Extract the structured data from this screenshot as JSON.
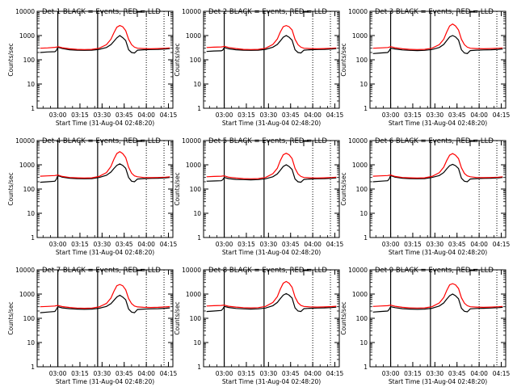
{
  "figure": {
    "background": "#ffffff"
  },
  "common": {
    "ylabel": "Counts/sec",
    "xlabel": "Start Time (31-Aug-04 02:48:20)",
    "xticks": [
      "03:00",
      "03:15",
      "03:30",
      "03:45",
      "04:00",
      "04:15"
    ],
    "yticks": [
      "1",
      "10",
      "100",
      "1000",
      "10000"
    ],
    "colors": {
      "events": "#000000",
      "lld": "#ff0000",
      "axes": "#000000"
    }
  },
  "chart_data": [
    {
      "type": "line",
      "title": "Det 1  BLACK = Events, RED = LLD",
      "xlabel": "Start Time (31-Aug-04 02:48:20)",
      "ylabel": "Counts/sec",
      "xlim": [
        -2,
        90
      ],
      "ylim": [
        1,
        10000
      ],
      "yscale": "log",
      "solid_vlines": [
        12,
        39
      ],
      "dotted_vlines": [
        72,
        84
      ],
      "x": [
        0,
        5,
        10,
        11,
        12,
        15,
        20,
        25,
        30,
        35,
        40,
        45,
        48,
        50,
        52,
        54,
        56,
        58,
        60,
        62,
        64,
        66,
        70,
        75,
        80,
        85,
        88
      ],
      "series": [
        {
          "name": "Events",
          "values": [
            200,
            210,
            215,
            240,
            330,
            290,
            260,
            250,
            245,
            250,
            270,
            320,
            420,
            580,
            800,
            1000,
            820,
            620,
            260,
            200,
            190,
            250,
            260,
            265,
            270,
            280,
            290
          ]
        },
        {
          "name": "LLD",
          "values": [
            300,
            310,
            325,
            330,
            350,
            315,
            285,
            270,
            265,
            270,
            300,
            420,
            700,
            1300,
            2200,
            2600,
            2300,
            1600,
            700,
            420,
            330,
            300,
            290,
            285,
            290,
            300,
            310
          ]
        }
      ]
    },
    {
      "type": "line",
      "title": "Det 2  BLACK = Events, RED = LLD",
      "xlabel": "Start Time (31-Aug-04 02:48:20)",
      "ylabel": "Counts/sec",
      "xlim": [
        -2,
        90
      ],
      "ylim": [
        1,
        10000
      ],
      "yscale": "log",
      "solid_vlines": [
        12,
        39
      ],
      "dotted_vlines": [
        72,
        84
      ],
      "x": [
        0,
        5,
        10,
        11,
        12,
        15,
        20,
        25,
        30,
        35,
        40,
        45,
        48,
        50,
        52,
        54,
        56,
        58,
        60,
        62,
        64,
        66,
        70,
        75,
        80,
        85,
        88
      ],
      "series": [
        {
          "name": "Events",
          "values": [
            220,
            230,
            235,
            250,
            320,
            285,
            260,
            250,
            245,
            250,
            270,
            330,
            430,
            600,
            850,
            1000,
            850,
            640,
            260,
            200,
            190,
            250,
            260,
            265,
            270,
            280,
            290
          ]
        },
        {
          "name": "LLD",
          "values": [
            320,
            330,
            340,
            345,
            360,
            320,
            290,
            270,
            265,
            270,
            300,
            430,
            720,
            1400,
            2300,
            2600,
            2300,
            1700,
            700,
            420,
            330,
            300,
            290,
            285,
            290,
            300,
            310
          ]
        }
      ]
    },
    {
      "type": "line",
      "title": "Det 3  BLACK = Events, RED = LLD",
      "xlabel": "Start Time (31-Aug-04 02:48:20)",
      "ylabel": "Counts/sec",
      "xlim": [
        -2,
        90
      ],
      "ylim": [
        1,
        10000
      ],
      "yscale": "log",
      "solid_vlines": [
        12,
        39
      ],
      "dotted_vlines": [
        72,
        84
      ],
      "x": [
        0,
        5,
        10,
        11,
        12,
        15,
        20,
        25,
        30,
        35,
        40,
        45,
        48,
        50,
        52,
        54,
        56,
        58,
        60,
        62,
        64,
        66,
        70,
        75,
        80,
        85,
        88
      ],
      "series": [
        {
          "name": "Events",
          "values": [
            180,
            190,
            200,
            230,
            300,
            280,
            255,
            245,
            240,
            245,
            265,
            320,
            430,
            620,
            880,
            1000,
            880,
            650,
            260,
            190,
            180,
            240,
            250,
            255,
            260,
            270,
            280
          ]
        },
        {
          "name": "LLD",
          "values": [
            300,
            310,
            320,
            330,
            350,
            315,
            285,
            270,
            265,
            270,
            300,
            420,
            700,
            1400,
            2500,
            3000,
            2500,
            1700,
            700,
            420,
            330,
            300,
            290,
            285,
            290,
            300,
            310
          ]
        }
      ]
    },
    {
      "type": "line",
      "title": "Det 4  BLACK = Events, RED = LLD",
      "xlabel": "Start Time (31-Aug-04 02:48:20)",
      "ylabel": "Counts/sec",
      "xlim": [
        -2,
        90
      ],
      "ylim": [
        1,
        10000
      ],
      "yscale": "log",
      "solid_vlines": [
        12,
        39
      ],
      "dotted_vlines": [
        72,
        84
      ],
      "x": [
        0,
        5,
        10,
        11,
        12,
        15,
        20,
        25,
        30,
        35,
        40,
        45,
        48,
        50,
        52,
        54,
        56,
        58,
        60,
        62,
        64,
        66,
        70,
        75,
        80,
        85,
        88
      ],
      "series": [
        {
          "name": "Events",
          "values": [
            190,
            200,
            210,
            250,
            360,
            310,
            280,
            270,
            265,
            270,
            300,
            370,
            500,
            700,
            950,
            1100,
            950,
            720,
            300,
            210,
            200,
            260,
            270,
            275,
            280,
            290,
            300
          ]
        },
        {
          "name": "LLD",
          "values": [
            340,
            350,
            360,
            370,
            380,
            330,
            300,
            290,
            285,
            290,
            330,
            480,
            850,
            1700,
            2900,
            3500,
            2900,
            2000,
            800,
            450,
            350,
            320,
            300,
            295,
            300,
            310,
            320
          ]
        }
      ]
    },
    {
      "type": "line",
      "title": "Det 5  BLACK = Events, RED = LLD",
      "xlabel": "Start Time (31-Aug-04 02:48:20)",
      "ylabel": "Counts/sec",
      "xlim": [
        -2,
        90
      ],
      "ylim": [
        1,
        10000
      ],
      "yscale": "log",
      "solid_vlines": [
        12,
        39
      ],
      "dotted_vlines": [
        72,
        84
      ],
      "x": [
        0,
        5,
        10,
        11,
        12,
        15,
        20,
        25,
        30,
        35,
        40,
        45,
        48,
        50,
        52,
        54,
        56,
        58,
        60,
        62,
        64,
        66,
        70,
        75,
        80,
        85,
        88
      ],
      "series": [
        {
          "name": "Events",
          "values": [
            210,
            215,
            220,
            240,
            300,
            270,
            250,
            245,
            240,
            245,
            265,
            320,
            420,
            600,
            850,
            1000,
            850,
            640,
            260,
            200,
            190,
            250,
            260,
            265,
            270,
            280,
            290
          ]
        },
        {
          "name": "LLD",
          "values": [
            320,
            330,
            340,
            345,
            350,
            310,
            285,
            270,
            265,
            270,
            300,
            430,
            720,
            1500,
            2600,
            3000,
            2600,
            1800,
            720,
            420,
            330,
            300,
            290,
            285,
            290,
            300,
            310
          ]
        }
      ]
    },
    {
      "type": "line",
      "title": "Det 6  BLACK = Events, RED = LLD",
      "xlabel": "Start Time (31-Aug-04 02:48:20)",
      "ylabel": "Counts/sec",
      "xlim": [
        -2,
        90
      ],
      "ylim": [
        1,
        10000
      ],
      "yscale": "log",
      "solid_vlines": [
        12,
        39
      ],
      "dotted_vlines": [
        72,
        84
      ],
      "x": [
        0,
        5,
        10,
        11,
        12,
        15,
        20,
        25,
        30,
        35,
        40,
        45,
        48,
        50,
        52,
        54,
        56,
        58,
        60,
        62,
        64,
        66,
        70,
        75,
        80,
        85,
        88
      ],
      "series": [
        {
          "name": "Events",
          "values": [
            200,
            210,
            220,
            260,
            360,
            310,
            280,
            270,
            265,
            270,
            300,
            360,
            480,
            680,
            920,
            1050,
            920,
            700,
            280,
            210,
            200,
            260,
            270,
            275,
            280,
            290,
            300
          ]
        },
        {
          "name": "LLD",
          "values": [
            340,
            350,
            360,
            370,
            380,
            330,
            300,
            290,
            285,
            290,
            330,
            470,
            800,
            1500,
            2500,
            2900,
            2500,
            1800,
            750,
            440,
            350,
            320,
            300,
            295,
            300,
            310,
            320
          ]
        }
      ]
    },
    {
      "type": "line",
      "title": "Det 7  BLACK = Events, RED = LLD",
      "xlabel": "Start Time (31-Aug-04 02:48:20)",
      "ylabel": "Counts/sec",
      "xlim": [
        -2,
        90
      ],
      "ylim": [
        1,
        10000
      ],
      "yscale": "log",
      "solid_vlines": [
        12,
        39
      ],
      "dotted_vlines": [
        72,
        84
      ],
      "x": [
        0,
        5,
        10,
        11,
        12,
        15,
        20,
        25,
        30,
        35,
        40,
        45,
        48,
        50,
        52,
        54,
        56,
        58,
        60,
        62,
        64,
        66,
        70,
        75,
        80,
        85,
        88
      ],
      "series": [
        {
          "name": "Events",
          "values": [
            170,
            180,
            190,
            230,
            300,
            270,
            250,
            240,
            235,
            240,
            260,
            310,
            400,
            550,
            750,
            900,
            750,
            580,
            240,
            180,
            170,
            230,
            240,
            245,
            250,
            260,
            270
          ]
        },
        {
          "name": "LLD",
          "values": [
            300,
            310,
            320,
            330,
            340,
            305,
            280,
            265,
            260,
            265,
            295,
            410,
            680,
            1300,
            2200,
            2500,
            2200,
            1500,
            650,
            400,
            320,
            295,
            285,
            280,
            285,
            295,
            305
          ]
        }
      ]
    },
    {
      "type": "line",
      "title": "Det 8  BLACK = Events, RED = LLD",
      "xlabel": "Start Time (31-Aug-04 02:48:20)",
      "ylabel": "Counts/sec",
      "xlim": [
        -2,
        90
      ],
      "ylim": [
        1,
        10000
      ],
      "yscale": "log",
      "solid_vlines": [
        12,
        39
      ],
      "dotted_vlines": [
        72,
        84
      ],
      "x": [
        0,
        5,
        10,
        11,
        12,
        15,
        20,
        25,
        30,
        35,
        40,
        45,
        48,
        50,
        52,
        54,
        56,
        58,
        60,
        62,
        64,
        66,
        70,
        75,
        80,
        85,
        88
      ],
      "series": [
        {
          "name": "Events",
          "values": [
            190,
            200,
            210,
            240,
            310,
            280,
            255,
            245,
            240,
            245,
            265,
            330,
            450,
            650,
            900,
            1050,
            900,
            680,
            270,
            200,
            190,
            250,
            260,
            265,
            270,
            280,
            290
          ]
        },
        {
          "name": "LLD",
          "values": [
            320,
            330,
            340,
            345,
            350,
            315,
            290,
            275,
            270,
            275,
            310,
            450,
            780,
            1600,
            2800,
            3300,
            2800,
            1900,
            750,
            440,
            340,
            310,
            295,
            290,
            295,
            305,
            315
          ]
        }
      ]
    },
    {
      "type": "line",
      "title": "Det 9  BLACK = Events, RED = LLD",
      "xlabel": "Start Time (31-Aug-04 02:48:20)",
      "ylabel": "Counts/sec",
      "xlim": [
        -2,
        90
      ],
      "ylim": [
        1,
        10000
      ],
      "yscale": "log",
      "solid_vlines": [
        12,
        39
      ],
      "dotted_vlines": [
        72,
        84
      ],
      "x": [
        0,
        5,
        10,
        11,
        12,
        15,
        20,
        25,
        30,
        35,
        40,
        45,
        48,
        50,
        52,
        54,
        56,
        58,
        60,
        62,
        64,
        66,
        70,
        75,
        80,
        85,
        88
      ],
      "series": [
        {
          "name": "Events",
          "values": [
            180,
            190,
            200,
            230,
            300,
            275,
            250,
            240,
            235,
            240,
            260,
            320,
            430,
            620,
            850,
            1000,
            850,
            640,
            260,
            195,
            185,
            245,
            255,
            260,
            265,
            275,
            285
          ]
        },
        {
          "name": "LLD",
          "values": [
            310,
            320,
            330,
            340,
            350,
            315,
            285,
            270,
            265,
            270,
            300,
            430,
            720,
            1400,
            2400,
            2700,
            2400,
            1700,
            700,
            420,
            330,
            300,
            290,
            285,
            290,
            300,
            310
          ]
        }
      ]
    }
  ]
}
